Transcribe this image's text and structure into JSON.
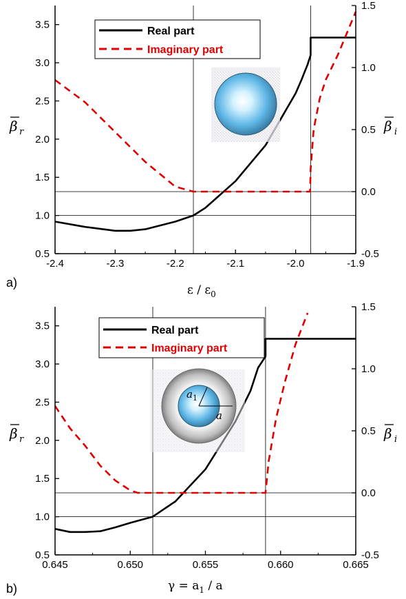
{
  "chart_data": [
    {
      "type": "line",
      "panel_label": "a)",
      "xlabel": {
        "main": "ε / ε",
        "sub": "0"
      },
      "ylabel_left": {
        "symbol": "β",
        "sub": "r"
      },
      "ylabel_right": {
        "symbol": "β",
        "sub": "i"
      },
      "xlim": [
        -2.4,
        -1.9
      ],
      "ylim_left": [
        0.5,
        3.75
      ],
      "ylim_right": [
        -0.5,
        1.5
      ],
      "x_ticks": [
        "-2.4",
        "-2.3",
        "-2.2",
        "-2.1",
        "-2.0",
        "-1.9"
      ],
      "y_left_ticks": [
        "0.5",
        "1.0",
        "1.5",
        "2.0",
        "2.5",
        "3.0",
        "3.5"
      ],
      "y_right_ticks": [
        "-0.5",
        "0.0",
        "0.5",
        "1.0",
        "1.5"
      ],
      "legend": {
        "position": "top-left",
        "entries": [
          "Real part",
          "Imaginary part"
        ]
      },
      "reference_lines": {
        "vertical": [
          -2.17,
          -1.975
        ],
        "horizontal_left": [
          1.0
        ],
        "horizontal_right": [
          0.0
        ]
      },
      "series": [
        {
          "name": "Real part",
          "axis": "left",
          "color": "#000000",
          "style": "solid",
          "x": [
            -2.4,
            -2.35,
            -2.3,
            -2.275,
            -2.25,
            -2.2,
            -2.17,
            -2.15,
            -2.1,
            -2.05,
            -2.0,
            -1.99,
            -1.98,
            -1.975,
            -1.975,
            -1.95,
            -1.9
          ],
          "y": [
            0.92,
            0.85,
            0.8,
            0.8,
            0.82,
            0.92,
            1.0,
            1.1,
            1.45,
            1.92,
            2.6,
            2.78,
            2.98,
            3.1,
            3.33,
            3.33,
            3.33
          ]
        },
        {
          "name": "Imaginary part",
          "axis": "right",
          "color": "#e00000",
          "style": "dashed",
          "x": [
            -2.4,
            -2.35,
            -2.3,
            -2.25,
            -2.2,
            -2.17,
            -2.1,
            -2.0,
            -1.976,
            -1.975,
            -1.97,
            -1.96,
            -1.95,
            -1.93,
            -1.9
          ],
          "y": [
            0.9,
            0.72,
            0.48,
            0.24,
            0.04,
            0.0,
            0.0,
            0.0,
            0.0,
            0.18,
            0.5,
            0.75,
            0.9,
            1.1,
            1.45
          ]
        }
      ]
    },
    {
      "type": "line",
      "panel_label": "b)",
      "xlabel": {
        "main": "γ = a",
        "sub": "1",
        "tail": " / a"
      },
      "ylabel_left": {
        "symbol": "β",
        "sub": "r"
      },
      "ylabel_right": {
        "symbol": "β",
        "sub": "i"
      },
      "xlim": [
        0.645,
        0.665
      ],
      "ylim_left": [
        0.5,
        3.75
      ],
      "ylim_right": [
        -0.5,
        1.5
      ],
      "x_ticks": [
        "0.645",
        "0.650",
        "0.655",
        "0.660",
        "0.665"
      ],
      "y_left_ticks": [
        "0.5",
        "1.0",
        "1.5",
        "2.0",
        "2.5",
        "3.0",
        "3.5"
      ],
      "y_right_ticks": [
        "-0.5",
        "0.0",
        "0.5",
        "1.0",
        "1.5"
      ],
      "legend": {
        "position": "top-left",
        "entries": [
          "Real part",
          "Imaginary part"
        ]
      },
      "reference_lines": {
        "vertical": [
          0.6515,
          0.659
        ],
        "horizontal_left": [
          1.0
        ],
        "horizontal_right": [
          0.0
        ]
      },
      "inset_labels": {
        "inner": "a",
        "inner_sub": "1",
        "outer": "a"
      },
      "series": [
        {
          "name": "Real part",
          "axis": "left",
          "color": "#000000",
          "style": "solid",
          "x": [
            0.645,
            0.646,
            0.647,
            0.648,
            0.649,
            0.65,
            0.6515,
            0.653,
            0.655,
            0.657,
            0.658,
            0.6585,
            0.659,
            0.659,
            0.665
          ],
          "y": [
            0.84,
            0.8,
            0.8,
            0.81,
            0.86,
            0.92,
            1.0,
            1.2,
            1.62,
            2.25,
            2.65,
            2.95,
            3.1,
            3.33,
            3.33
          ]
        },
        {
          "name": "Imaginary part",
          "axis": "right",
          "color": "#e00000",
          "style": "dashed",
          "x": [
            0.645,
            0.646,
            0.647,
            0.648,
            0.649,
            0.65,
            0.6505,
            0.6515,
            0.659,
            0.6592,
            0.6597,
            0.6603,
            0.661,
            0.6618
          ],
          "y": [
            0.7,
            0.52,
            0.38,
            0.22,
            0.1,
            0.02,
            0.0,
            0.0,
            0.0,
            0.25,
            0.6,
            0.9,
            1.2,
            1.45
          ]
        }
      ]
    }
  ]
}
